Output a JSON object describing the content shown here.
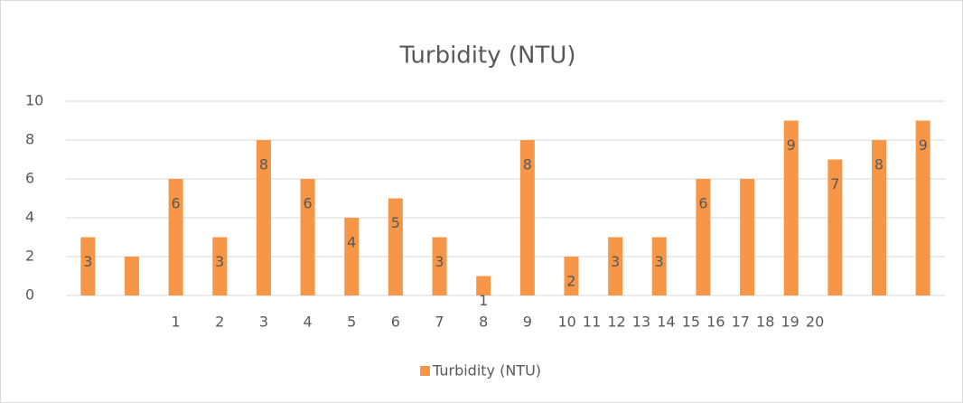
{
  "chart_data": {
    "type": "bar",
    "title": "Turbidity (NTU)",
    "categories": [
      null,
      null,
      "1",
      "2",
      "3",
      "4",
      "5",
      "6",
      "7",
      "8",
      "9",
      "10 11 12 13 14 15 16 17 18 19 20",
      null,
      null,
      null,
      null,
      null,
      null,
      null,
      null
    ],
    "series": [
      {
        "name": "Turbidity (NTU)",
        "color": "#f79646",
        "values": [
          3,
          2,
          6,
          3,
          8,
          6,
          4,
          5,
          3,
          1,
          8,
          2,
          3,
          3,
          6,
          6,
          9,
          7,
          8,
          9
        ],
        "value_labels": [
          "3",
          null,
          "6",
          "3",
          "8",
          "6",
          "4",
          "5",
          "3",
          "1",
          "8",
          "2",
          "3",
          "3",
          "6",
          null,
          "9",
          "7",
          "8",
          "9"
        ]
      }
    ],
    "ylim": [
      0,
      10
    ],
    "yticks": [
      0,
      2,
      4,
      6,
      8,
      10
    ],
    "grid": true,
    "legend": "bottom"
  }
}
